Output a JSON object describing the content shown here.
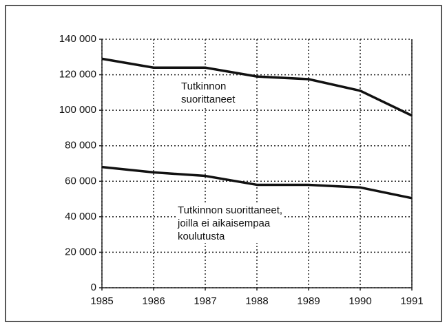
{
  "chart_data": {
    "type": "line",
    "x": [
      1985,
      1986,
      1987,
      1988,
      1989,
      1990,
      1991
    ],
    "series": [
      {
        "name": "Tutkinnon\nsuorittaneet",
        "color": "#111111",
        "values": [
          129000,
          124000,
          124000,
          119000,
          117500,
          111000,
          97000
        ]
      },
      {
        "name": "Tutkinnon suorittaneet,\njoilla ei aikaisempaa\nkoulutusta",
        "color": "#111111",
        "values": [
          68000,
          65000,
          63000,
          58000,
          58000,
          56500,
          50500
        ]
      }
    ],
    "xlim": [
      1985,
      1991
    ],
    "xticks": [
      1985,
      1986,
      1987,
      1988,
      1989,
      1990,
      1991
    ],
    "ylim": [
      0,
      140000
    ],
    "yticks": [
      0,
      {
        "value": 20000,
        "label": "20 000"
      },
      {
        "value": 40000,
        "label": "40 000"
      },
      {
        "value": 60000,
        "label": "60 000"
      },
      {
        "value": 80000,
        "label": "80 000"
      },
      {
        "value": 100000,
        "label": "100 000"
      },
      {
        "value": 120000,
        "label": "120 000"
      },
      {
        "value": 140000,
        "label": "140 000"
      }
    ],
    "grid": true
  }
}
